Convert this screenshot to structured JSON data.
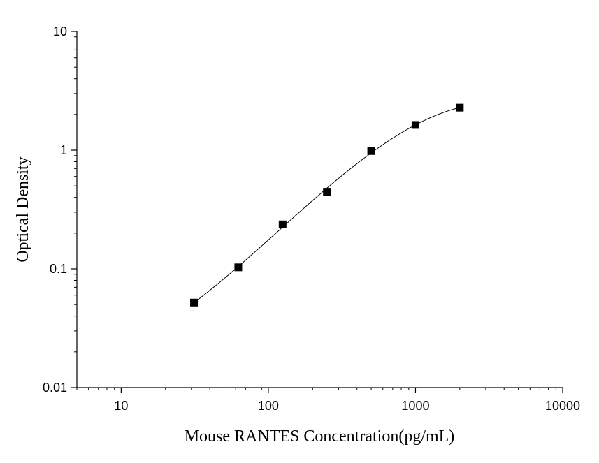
{
  "chart_data": {
    "type": "scatter",
    "title": "",
    "xlabel": "Mouse RANTES Concentration(pg/mL)",
    "ylabel": "Optical Density",
    "x_scale": "log",
    "y_scale": "log",
    "xlim": [
      5,
      10000
    ],
    "ylim": [
      0.01,
      10
    ],
    "x_ticks": [
      {
        "value": 10,
        "label": "10"
      },
      {
        "value": 100,
        "label": "100"
      },
      {
        "value": 1000,
        "label": "1000"
      },
      {
        "value": 10000,
        "label": "10000"
      }
    ],
    "y_ticks": [
      {
        "value": 0.01,
        "label": "0.01"
      },
      {
        "value": 0.1,
        "label": "0.1"
      },
      {
        "value": 1,
        "label": "1"
      },
      {
        "value": 10,
        "label": "10"
      }
    ],
    "grid": false,
    "series": [
      {
        "marker": "square",
        "color": "#000000",
        "x": [
          31.25,
          62.5,
          125,
          250,
          500,
          1000,
          2000
        ],
        "y": [
          0.052,
          0.103,
          0.237,
          0.446,
          0.983,
          1.63,
          2.28
        ]
      }
    ],
    "fit_curve": {
      "color": "#000000"
    }
  }
}
